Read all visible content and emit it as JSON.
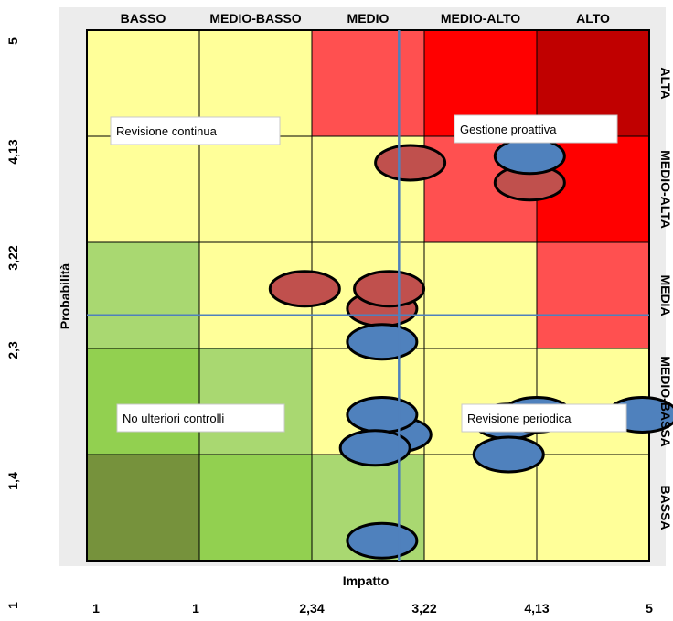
{
  "chart_data": {
    "type": "heatmap",
    "xlabel": "Impatto",
    "ylabel": "Probabilità",
    "x_ticks": [
      "1",
      "1",
      "2,34",
      "3,22",
      "4,13",
      "5"
    ],
    "y_ticks": [
      "5",
      "4,13",
      "3,22",
      "2,3",
      "1,4",
      "1"
    ],
    "columns": [
      "BASSO",
      "MEDIO-BASSO",
      "MEDIO",
      "MEDIO-ALTO",
      "ALTO"
    ],
    "rows": [
      "ALTA",
      "MEDIO-ALTA",
      "MEDIA",
      "MEDIO-BASSA",
      "BASSA"
    ],
    "cell_colors": [
      [
        "#ffff99",
        "#ffff99",
        "#ff5050",
        "#ff0000",
        "#c00000"
      ],
      [
        "#ffff99",
        "#ffff99",
        "#ffff99",
        "#ff5050",
        "#ff0000"
      ],
      [
        "#a9d871",
        "#ffff99",
        "#ffff99",
        "#ffff99",
        "#ff5050"
      ],
      [
        "#92d050",
        "#a9d871",
        "#ffff99",
        "#ffff99",
        "#ffff99"
      ],
      [
        "#76923c",
        "#92d050",
        "#a9d871",
        "#ffff99",
        "#ffff99"
      ]
    ],
    "zone_labels": [
      "Revisione continua",
      "Gestione proattiva",
      "No ulteriori controlli",
      "Revisione periodica"
    ],
    "points": [
      {
        "x": 3.3,
        "y": 4.0,
        "color": "#c0504d"
      },
      {
        "x": 4.15,
        "y": 3.85,
        "color": "#c0504d"
      },
      {
        "x": 4.15,
        "y": 4.05,
        "color": "#4f81bd"
      },
      {
        "x": 2.55,
        "y": 3.05,
        "color": "#c0504d"
      },
      {
        "x": 3.1,
        "y": 2.9,
        "color": "#c0504d"
      },
      {
        "x": 3.15,
        "y": 3.05,
        "color": "#c0504d"
      },
      {
        "x": 3.1,
        "y": 2.65,
        "color": "#4f81bd"
      },
      {
        "x": 3.2,
        "y": 1.95,
        "color": "#4f81bd"
      },
      {
        "x": 3.1,
        "y": 2.1,
        "color": "#4f81bd"
      },
      {
        "x": 3.05,
        "y": 1.85,
        "color": "#4f81bd"
      },
      {
        "x": 4.0,
        "y": 2.05,
        "color": "#4f81bd"
      },
      {
        "x": 4.0,
        "y": 1.8,
        "color": "#4f81bd"
      },
      {
        "x": 4.2,
        "y": 2.1,
        "color": "#4f81bd"
      },
      {
        "x": 4.95,
        "y": 2.1,
        "color": "#4f81bd"
      },
      {
        "x": 3.1,
        "y": 1.15,
        "color": "#4f81bd"
      }
    ],
    "crosshair": {
      "x": 3.22,
      "y": 2.85
    },
    "xlim": [
      1,
      5
    ],
    "ylim": [
      1,
      5
    ],
    "grid": true
  }
}
